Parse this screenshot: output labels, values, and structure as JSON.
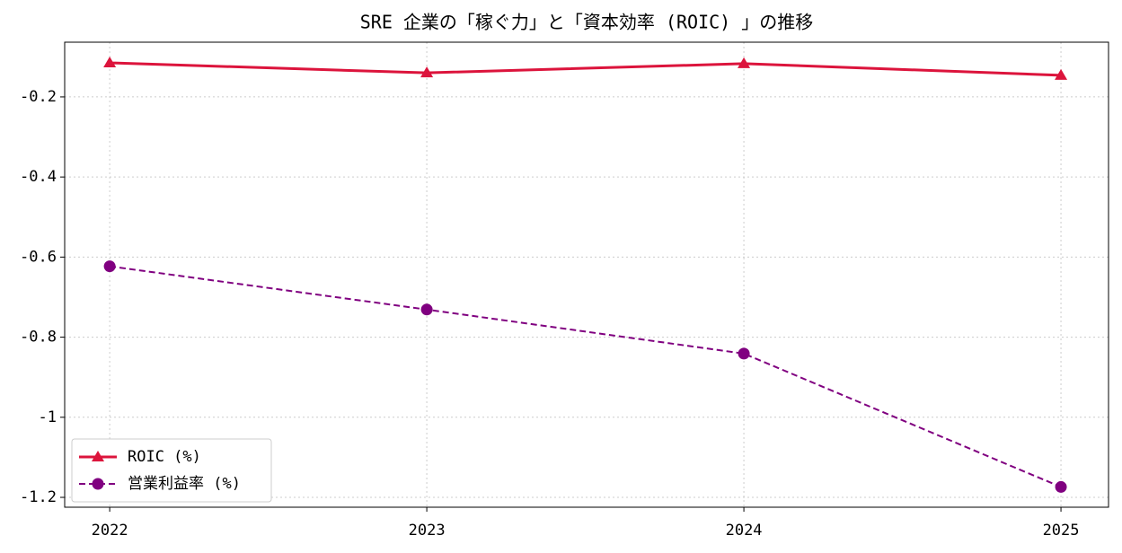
{
  "chart_data": {
    "type": "line",
    "title": "SRE 企業の「稼ぐ力」と「資本効率 (ROIC) 」の推移",
    "x": [
      2022,
      2023,
      2024,
      2025
    ],
    "xlim": [
      2021.858,
      2025.15
    ],
    "xticks": [
      2022,
      2023,
      2024,
      2025
    ],
    "ylim": [
      -1.2246,
      -0.0634
    ],
    "yticks": [
      -0.2,
      -0.4,
      -0.6,
      -0.8,
      -1.0,
      -1.2
    ],
    "grid": true,
    "legend": "lower left",
    "series": [
      {
        "name": "ROIC (%)",
        "color": "#dc143c",
        "marker": "triangle",
        "dash": "solid",
        "values": [
          -0.115,
          -0.14,
          -0.117,
          -0.146
        ]
      },
      {
        "name": "営業利益率 (%)",
        "color": "#800080",
        "marker": "circle",
        "dash": "dashed",
        "values": [
          -0.623,
          -0.731,
          -0.841,
          -1.174
        ]
      }
    ]
  }
}
